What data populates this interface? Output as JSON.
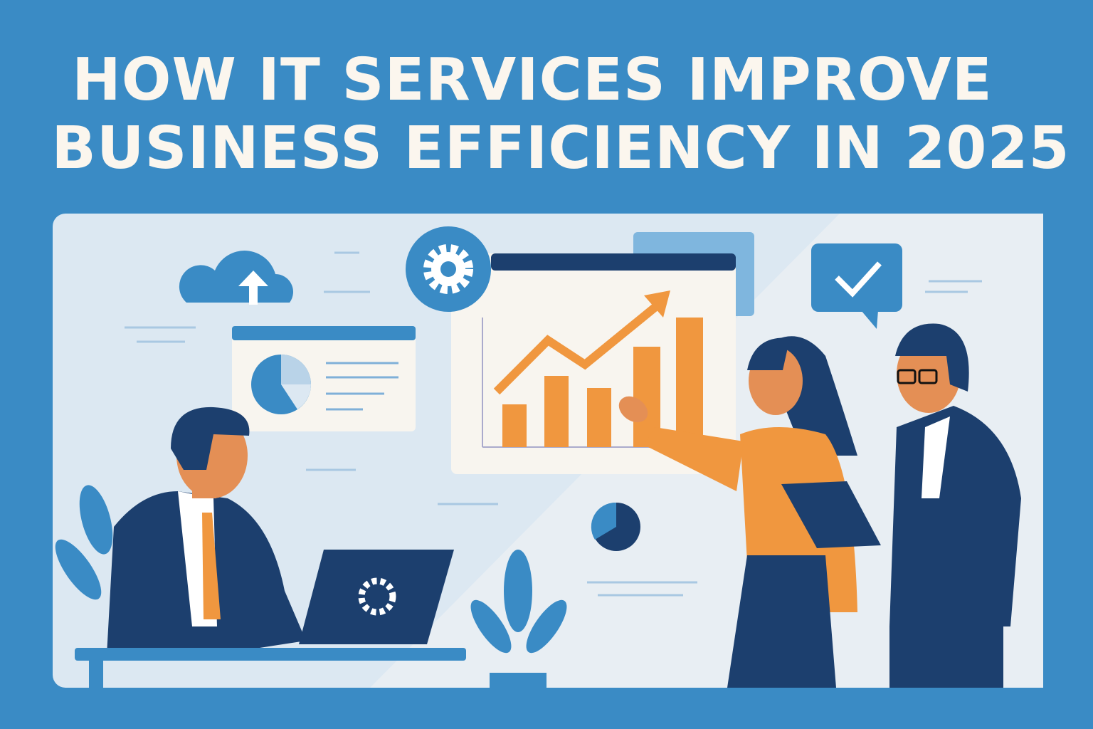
{
  "title": {
    "line1": "HOW IT SERVICES IMPROVE",
    "line2": "BUSINESS EFFICIENCY IN 2025"
  },
  "colors": {
    "background": "#3a8bc5",
    "panel": "#dce8f2",
    "navy": "#1c3f6e",
    "orange": "#f0973f",
    "title_text": "#fbf6ee"
  },
  "icons": [
    "cloud-upload-icon",
    "gear-icon",
    "checkmark-chat-icon",
    "pie-chart-icon",
    "growth-arrow-icon",
    "laptop-gear-icon",
    "plant-icon"
  ],
  "illustration": {
    "bar_chart_levels": [
      0.3,
      0.5,
      0.45,
      0.7,
      0.95
    ]
  }
}
